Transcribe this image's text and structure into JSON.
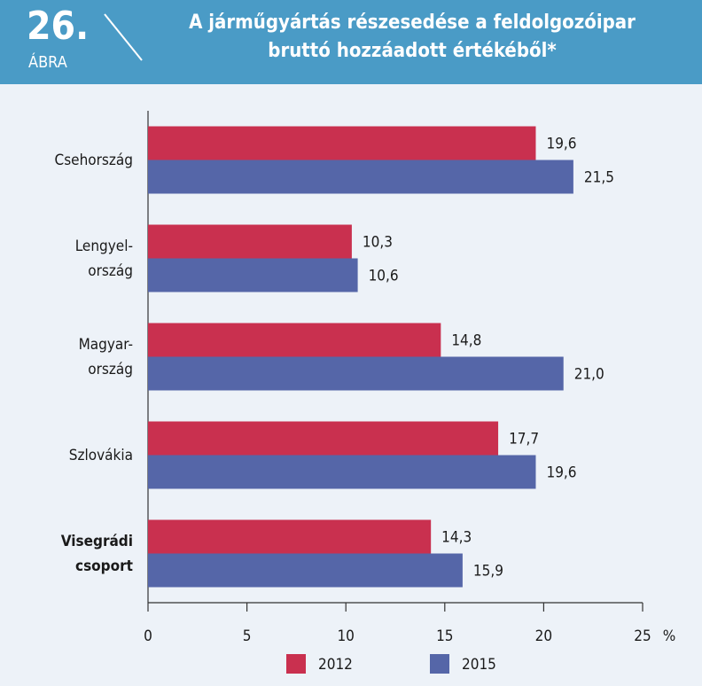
{
  "chart_data": {
    "type": "hbar",
    "figure_number": "26.",
    "figure_word": "ÁBRA",
    "title": "A járműgyártás részesedése a feldolgozóipar\nbruttó hozzáadott értékéből*",
    "categories": [
      "Csehország",
      "Lengyel-\nország",
      "Magyar-\nország",
      "Szlovákia",
      "Visegrádi\ncsoport"
    ],
    "series": [
      {
        "name": "2012",
        "color": "#c9304f",
        "values": [
          19.6,
          10.3,
          14.8,
          17.7,
          14.3
        ],
        "value_labels": [
          "19,6",
          "10,3",
          "14,8",
          "17,7",
          "14,3"
        ]
      },
      {
        "name": "2015",
        "color": "#5566a8",
        "values": [
          21.5,
          10.6,
          21.0,
          19.6,
          15.9
        ],
        "value_labels": [
          "21,5",
          "10,6",
          "21,0",
          "19,6",
          "15,9"
        ]
      }
    ],
    "x_unit": "%",
    "xlim": [
      0,
      25
    ],
    "xticks": [
      0,
      5,
      10,
      15,
      20,
      25
    ],
    "grid": false
  }
}
